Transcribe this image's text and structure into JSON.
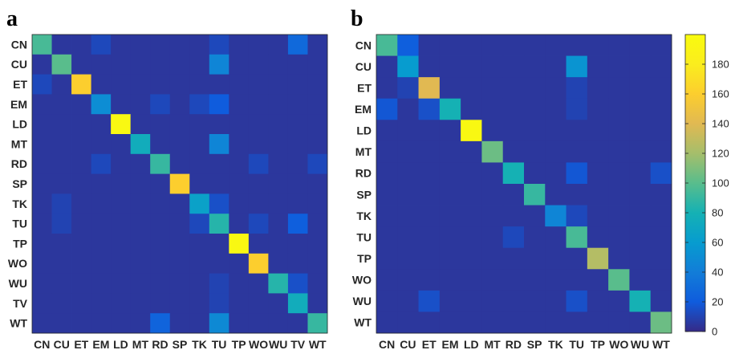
{
  "chart_data": [
    {
      "type": "heatmap",
      "panel_label": "a",
      "rows": [
        "CN",
        "CU",
        "ET",
        "EM",
        "LD",
        "MT",
        "RD",
        "SP",
        "TK",
        "TU",
        "TP",
        "WO",
        "WU",
        "TV",
        "WT"
      ],
      "cols": [
        "CN",
        "CU",
        "ET",
        "EM",
        "LD",
        "MT",
        "RD",
        "SP",
        "TK",
        "TU",
        "TP",
        "WO",
        "WU",
        "TV",
        "WT"
      ],
      "values": [
        [
          95,
          5,
          5,
          12,
          5,
          5,
          5,
          5,
          5,
          12,
          5,
          5,
          5,
          28,
          5
        ],
        [
          5,
          100,
          5,
          5,
          5,
          5,
          5,
          5,
          5,
          45,
          5,
          5,
          5,
          5,
          5
        ],
        [
          12,
          5,
          160,
          5,
          5,
          5,
          5,
          5,
          5,
          5,
          5,
          5,
          5,
          5,
          5
        ],
        [
          5,
          5,
          5,
          50,
          5,
          5,
          12,
          5,
          12,
          20,
          5,
          5,
          5,
          5,
          5
        ],
        [
          5,
          5,
          5,
          5,
          195,
          5,
          5,
          5,
          5,
          5,
          5,
          5,
          5,
          5,
          5
        ],
        [
          5,
          5,
          5,
          5,
          5,
          75,
          5,
          5,
          5,
          45,
          5,
          5,
          5,
          5,
          5
        ],
        [
          5,
          5,
          5,
          12,
          5,
          5,
          90,
          5,
          5,
          5,
          5,
          12,
          5,
          5,
          12
        ],
        [
          5,
          5,
          5,
          5,
          5,
          5,
          5,
          160,
          5,
          5,
          5,
          5,
          5,
          5,
          5
        ],
        [
          5,
          10,
          5,
          5,
          5,
          5,
          5,
          5,
          65,
          15,
          5,
          5,
          5,
          5,
          5
        ],
        [
          5,
          10,
          5,
          5,
          5,
          5,
          5,
          5,
          12,
          85,
          5,
          12,
          5,
          22,
          5
        ],
        [
          5,
          5,
          5,
          5,
          5,
          5,
          5,
          5,
          5,
          5,
          195,
          5,
          5,
          5,
          5
        ],
        [
          5,
          5,
          5,
          5,
          5,
          5,
          5,
          5,
          5,
          5,
          5,
          160,
          5,
          5,
          5
        ],
        [
          5,
          5,
          5,
          5,
          5,
          5,
          5,
          5,
          5,
          10,
          5,
          5,
          85,
          15,
          5
        ],
        [
          5,
          5,
          5,
          5,
          5,
          5,
          5,
          5,
          5,
          10,
          5,
          5,
          5,
          75,
          5
        ],
        [
          5,
          5,
          5,
          5,
          5,
          5,
          25,
          5,
          5,
          48,
          5,
          5,
          5,
          5,
          90
        ]
      ],
      "clim": [
        0,
        200
      ]
    },
    {
      "type": "heatmap",
      "panel_label": "b",
      "rows": [
        "CN",
        "CU",
        "ET",
        "EM",
        "LD",
        "MT",
        "RD",
        "SP",
        "TK",
        "TU",
        "TP",
        "WO",
        "WU",
        "WT"
      ],
      "cols": [
        "CN",
        "CU",
        "ET",
        "EM",
        "LD",
        "MT",
        "RD",
        "SP",
        "TK",
        "TU",
        "TP",
        "WO",
        "WU",
        "WT"
      ],
      "values": [
        [
          95,
          22,
          5,
          5,
          5,
          5,
          5,
          5,
          5,
          5,
          5,
          5,
          5,
          5
        ],
        [
          5,
          60,
          5,
          5,
          5,
          5,
          5,
          5,
          5,
          55,
          5,
          5,
          5,
          5
        ],
        [
          5,
          10,
          140,
          5,
          5,
          5,
          5,
          5,
          5,
          10,
          5,
          5,
          5,
          5
        ],
        [
          18,
          5,
          15,
          80,
          5,
          5,
          5,
          5,
          5,
          10,
          5,
          5,
          5,
          5
        ],
        [
          5,
          5,
          5,
          5,
          195,
          5,
          5,
          5,
          5,
          5,
          5,
          5,
          5,
          5
        ],
        [
          5,
          5,
          5,
          5,
          5,
          105,
          5,
          5,
          5,
          5,
          5,
          5,
          5,
          5
        ],
        [
          5,
          5,
          5,
          5,
          5,
          5,
          80,
          5,
          5,
          18,
          5,
          5,
          5,
          15
        ],
        [
          5,
          5,
          5,
          5,
          5,
          5,
          5,
          90,
          5,
          5,
          5,
          5,
          5,
          5
        ],
        [
          5,
          5,
          5,
          5,
          5,
          5,
          5,
          5,
          45,
          12,
          5,
          5,
          5,
          5
        ],
        [
          5,
          5,
          5,
          5,
          5,
          5,
          12,
          5,
          5,
          95,
          5,
          5,
          5,
          5
        ],
        [
          5,
          5,
          5,
          5,
          5,
          5,
          5,
          5,
          5,
          5,
          125,
          5,
          5,
          5
        ],
        [
          5,
          5,
          5,
          5,
          5,
          5,
          5,
          5,
          5,
          5,
          5,
          100,
          5,
          5
        ],
        [
          5,
          5,
          15,
          5,
          5,
          5,
          5,
          5,
          5,
          15,
          5,
          5,
          80,
          5
        ],
        [
          5,
          5,
          5,
          5,
          5,
          5,
          5,
          5,
          5,
          5,
          5,
          5,
          5,
          105
        ]
      ],
      "clim": [
        0,
        200
      ]
    }
  ],
  "colorbar": {
    "ticks": [
      0,
      20,
      40,
      60,
      80,
      100,
      120,
      140,
      160,
      180
    ],
    "tick_labels": [
      "0",
      "20",
      "40",
      "60",
      "80",
      "100",
      "120",
      "140",
      "160",
      "180"
    ],
    "range": [
      0,
      200
    ],
    "colormap": "parula"
  }
}
